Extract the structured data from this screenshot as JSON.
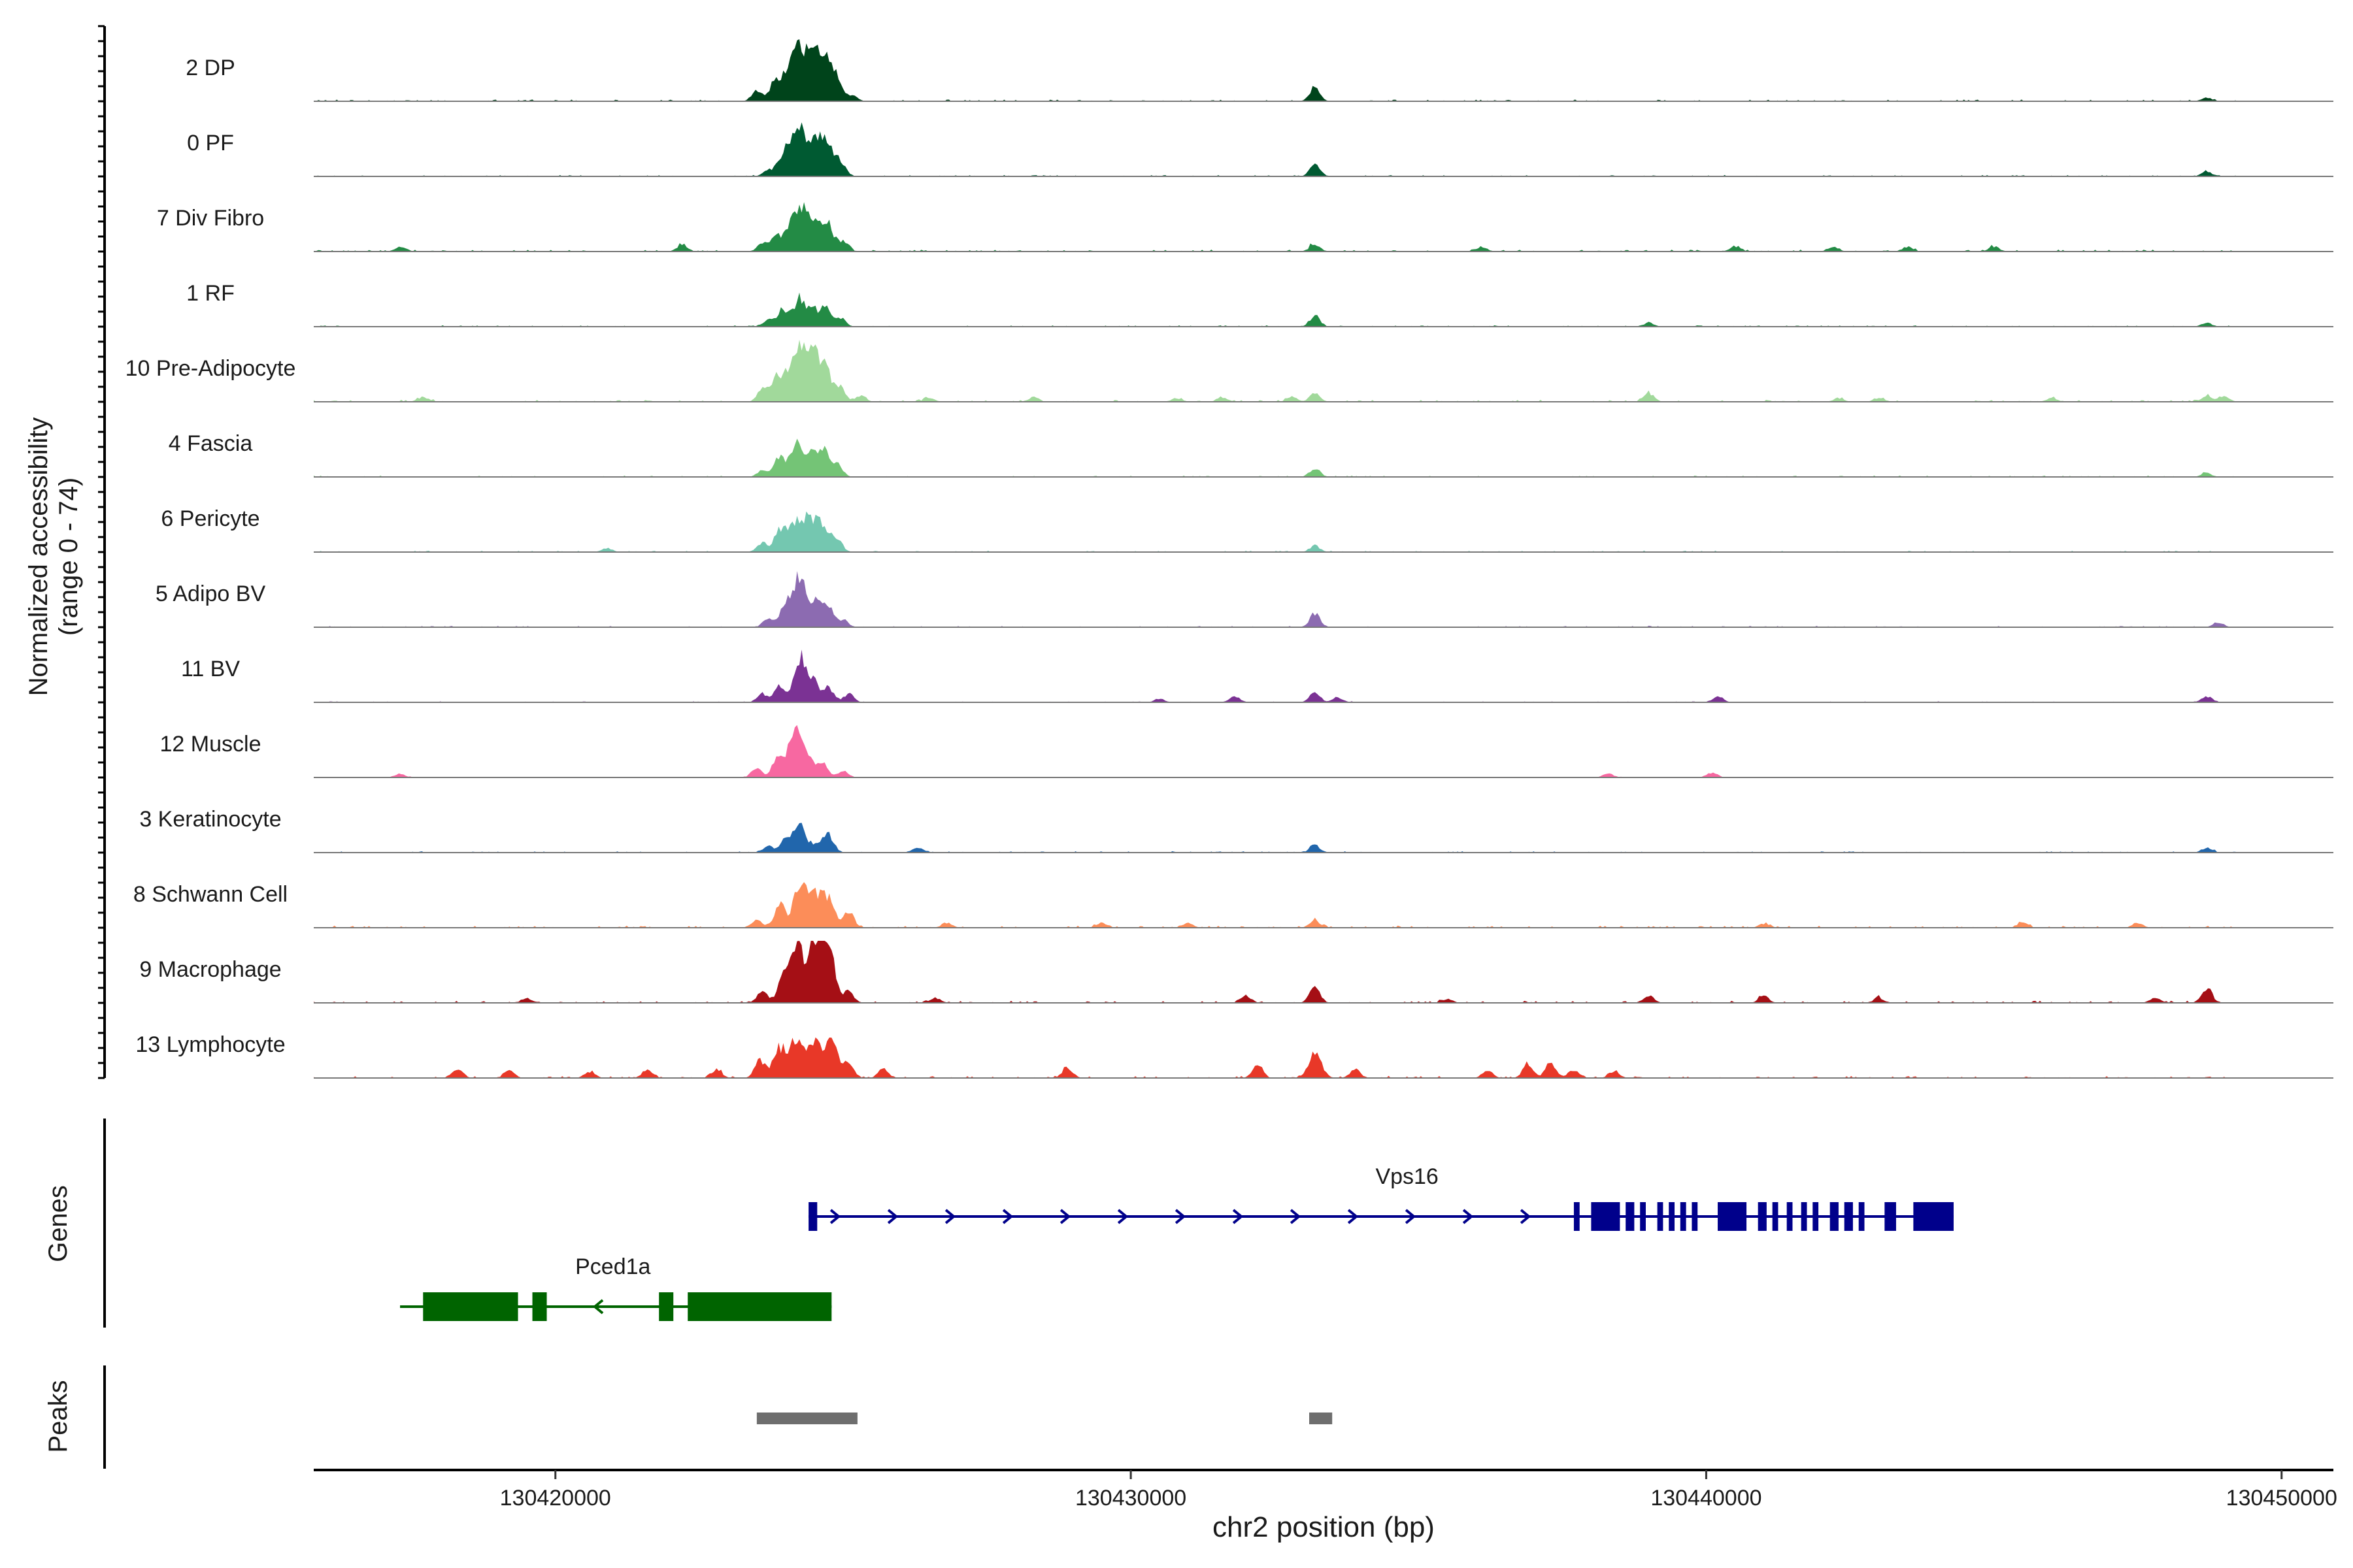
{
  "chart_data": {
    "type": "area",
    "title": "",
    "xlabel": "chr2 position (bp)",
    "ylabel": "Normalized accessibility",
    "ylabel_sub": "(range 0 - 74)",
    "xlim": [
      130415800,
      130450900
    ],
    "x_ticks": [
      {
        "value": 130420000,
        "label": "130420000"
      },
      {
        "value": 130430000,
        "label": "130430000"
      },
      {
        "value": 130440000,
        "label": "130440000"
      },
      {
        "value": 130450000,
        "label": "130450000"
      }
    ],
    "ylim": [
      0,
      74
    ],
    "series": [
      {
        "name": "2 DP",
        "color": "#00441b",
        "peaks": [
          [
            130423500,
            16
          ],
          [
            130423800,
            28
          ],
          [
            130424050,
            46
          ],
          [
            130424250,
            88
          ],
          [
            130424500,
            58
          ],
          [
            130424700,
            66
          ],
          [
            130424900,
            30
          ],
          [
            130425150,
            10
          ],
          [
            130433200,
            22
          ],
          [
            130448700,
            6
          ]
        ],
        "noise": 2.5,
        "range": [
          130415800,
          130449200
        ]
      },
      {
        "name": "0 PF",
        "color": "#005a32",
        "peaks": [
          [
            130423700,
            10
          ],
          [
            130424000,
            44
          ],
          [
            130424250,
            68
          ],
          [
            130424500,
            42
          ],
          [
            130424700,
            56
          ],
          [
            130424950,
            22
          ],
          [
            130433200,
            20
          ],
          [
            130448700,
            8
          ]
        ],
        "noise": 2,
        "range": [
          130415800,
          130449200
        ]
      },
      {
        "name": "7 Div Fibro",
        "color": "#238b45",
        "peaks": [
          [
            130417300,
            8
          ],
          [
            130422200,
            10
          ],
          [
            130423600,
            14
          ],
          [
            130423850,
            26
          ],
          [
            130424100,
            40
          ],
          [
            130424300,
            62
          ],
          [
            130424550,
            44
          ],
          [
            130424750,
            38
          ],
          [
            130425000,
            16
          ],
          [
            130433200,
            12
          ],
          [
            130436100,
            8
          ],
          [
            130440500,
            8
          ],
          [
            130442200,
            8
          ],
          [
            130443500,
            8
          ],
          [
            130445000,
            8
          ]
        ],
        "noise": 3,
        "range": [
          130415800,
          130449200
        ]
      },
      {
        "name": "1 RF",
        "color": "#238b45",
        "peaks": [
          [
            130423700,
            10
          ],
          [
            130423950,
            28
          ],
          [
            130424250,
            46
          ],
          [
            130424500,
            22
          ],
          [
            130424700,
            30
          ],
          [
            130424950,
            14
          ],
          [
            130433200,
            16
          ],
          [
            130439000,
            6
          ],
          [
            130448700,
            6
          ]
        ],
        "noise": 2,
        "range": [
          130415800,
          130449200
        ]
      },
      {
        "name": "10 Pre-Adipocyte",
        "color": "#a1d99b",
        "peaks": [
          [
            130417700,
            8
          ],
          [
            130423600,
            20
          ],
          [
            130423850,
            38
          ],
          [
            130424100,
            52
          ],
          [
            130424300,
            80
          ],
          [
            130424500,
            56
          ],
          [
            130424700,
            46
          ],
          [
            130424950,
            22
          ],
          [
            130425300,
            10
          ],
          [
            130426500,
            6
          ],
          [
            130428300,
            6
          ],
          [
            130430800,
            6
          ],
          [
            130431600,
            6
          ],
          [
            130432800,
            8
          ],
          [
            130433200,
            14
          ],
          [
            130439000,
            14
          ],
          [
            130442300,
            6
          ],
          [
            130443000,
            6
          ],
          [
            130446000,
            6
          ],
          [
            130448700,
            10
          ],
          [
            130449000,
            8
          ]
        ],
        "noise": 3,
        "range": [
          130415800,
          130449200
        ]
      },
      {
        "name": "4 Fascia",
        "color": "#74c476",
        "peaks": [
          [
            130423600,
            10
          ],
          [
            130423900,
            34
          ],
          [
            130424200,
            52
          ],
          [
            130424450,
            28
          ],
          [
            130424650,
            44
          ],
          [
            130424900,
            18
          ],
          [
            130433200,
            14
          ],
          [
            130448700,
            6
          ]
        ],
        "noise": 2,
        "range": [
          130415800,
          130449200
        ]
      },
      {
        "name": "6 Pericyte",
        "color": "#74c7b0",
        "peaks": [
          [
            130420900,
            6
          ],
          [
            130423600,
            14
          ],
          [
            130423900,
            36
          ],
          [
            130424150,
            44
          ],
          [
            130424400,
            54
          ],
          [
            130424650,
            44
          ],
          [
            130424900,
            20
          ],
          [
            130433200,
            10
          ]
        ],
        "noise": 2,
        "range": [
          130415800,
          130449200
        ]
      },
      {
        "name": "5 Adipo BV",
        "color": "#8c6bb1",
        "peaks": [
          [
            130423700,
            14
          ],
          [
            130424000,
            38
          ],
          [
            130424250,
            80
          ],
          [
            130424550,
            40
          ],
          [
            130424750,
            30
          ],
          [
            130425000,
            12
          ],
          [
            130433200,
            22
          ],
          [
            130448900,
            8
          ]
        ],
        "noise": 2,
        "range": [
          130415800,
          130449200
        ]
      },
      {
        "name": "11 BV",
        "color": "#7b3294",
        "peaks": [
          [
            130423600,
            14
          ],
          [
            130423900,
            28
          ],
          [
            130424250,
            72
          ],
          [
            130424500,
            30
          ],
          [
            130424750,
            24
          ],
          [
            130425100,
            14
          ],
          [
            130430500,
            6
          ],
          [
            130431800,
            10
          ],
          [
            130433200,
            16
          ],
          [
            130433600,
            8
          ],
          [
            130440200,
            10
          ],
          [
            130448700,
            10
          ]
        ],
        "noise": 1.5,
        "range": [
          130415800,
          130449200
        ]
      },
      {
        "name": "12 Muscle",
        "color": "#f768a1",
        "peaks": [
          [
            130417300,
            6
          ],
          [
            130423500,
            14
          ],
          [
            130423850,
            28
          ],
          [
            130424150,
            84
          ],
          [
            130424400,
            30
          ],
          [
            130424650,
            24
          ],
          [
            130425000,
            10
          ],
          [
            130438300,
            6
          ],
          [
            130440100,
            8
          ]
        ],
        "noise": 1,
        "range": [
          130415800,
          130449200
        ]
      },
      {
        "name": "3 Keratinocyte",
        "color": "#2166ac",
        "peaks": [
          [
            130423700,
            10
          ],
          [
            130424000,
            20
          ],
          [
            130424250,
            42
          ],
          [
            130424550,
            14
          ],
          [
            130424750,
            28
          ],
          [
            130426300,
            8
          ],
          [
            130433200,
            12
          ],
          [
            130448700,
            8
          ]
        ],
        "noise": 2,
        "range": [
          130415800,
          130449200
        ]
      },
      {
        "name": "8 Schwann Cell",
        "color": "#fc8d59",
        "peaks": [
          [
            130423500,
            14
          ],
          [
            130423900,
            36
          ],
          [
            130424250,
            72
          ],
          [
            130424500,
            50
          ],
          [
            130424750,
            46
          ],
          [
            130425100,
            26
          ],
          [
            130426800,
            8
          ],
          [
            130429500,
            8
          ],
          [
            130431000,
            8
          ],
          [
            130433200,
            12
          ],
          [
            130441000,
            6
          ],
          [
            130445500,
            8
          ],
          [
            130447500,
            8
          ]
        ],
        "noise": 3,
        "range": [
          130415800,
          130449200
        ]
      },
      {
        "name": "9 Macrophage",
        "color": "#a50f15",
        "peaks": [
          [
            130423600,
            20
          ],
          [
            130423950,
            40
          ],
          [
            130424200,
            90
          ],
          [
            130424500,
            88
          ],
          [
            130424750,
            92
          ],
          [
            130425100,
            18
          ],
          [
            130419500,
            8
          ],
          [
            130426600,
            8
          ],
          [
            130432000,
            12
          ],
          [
            130433200,
            26
          ],
          [
            130435500,
            6
          ],
          [
            130439000,
            12
          ],
          [
            130441000,
            10
          ],
          [
            130443000,
            8
          ],
          [
            130447800,
            8
          ],
          [
            130448700,
            24
          ]
        ],
        "noise": 3,
        "range": [
          130415800,
          130449200
        ]
      },
      {
        "name": "13 Lymphocyte",
        "color": "#e83828",
        "peaks": [
          [
            130418300,
            14
          ],
          [
            130419200,
            12
          ],
          [
            130420600,
            10
          ],
          [
            130421600,
            14
          ],
          [
            130422800,
            14
          ],
          [
            130423550,
            30
          ],
          [
            130423900,
            48
          ],
          [
            130424200,
            62
          ],
          [
            130424500,
            54
          ],
          [
            130424800,
            58
          ],
          [
            130425100,
            24
          ],
          [
            130425700,
            14
          ],
          [
            130428900,
            16
          ],
          [
            130432200,
            22
          ],
          [
            130433200,
            42
          ],
          [
            130433900,
            14
          ],
          [
            130436200,
            12
          ],
          [
            130436900,
            22
          ],
          [
            130437300,
            26
          ],
          [
            130437700,
            14
          ],
          [
            130438400,
            10
          ]
        ],
        "noise": 3,
        "range": [
          130415800,
          130449200
        ]
      }
    ],
    "genes": [
      {
        "name": "Vps16",
        "strand": "+",
        "color": "#00008b",
        "start": 130424400,
        "end": 130444300,
        "exons": [
          [
            130424400,
            130424550
          ],
          [
            130437700,
            130437800
          ],
          [
            130438000,
            130438500
          ],
          [
            130438600,
            130438750
          ],
          [
            130438850,
            130438950
          ],
          [
            130439150,
            130439250
          ],
          [
            130439350,
            130439450
          ],
          [
            130439550,
            130439650
          ],
          [
            130439750,
            130439850
          ],
          [
            130440200,
            130440700
          ],
          [
            130440900,
            130441050
          ],
          [
            130441150,
            130441250
          ],
          [
            130441400,
            130441500
          ],
          [
            130441650,
            130441750
          ],
          [
            130441850,
            130441950
          ],
          [
            130442150,
            130442300
          ],
          [
            130442400,
            130442550
          ],
          [
            130442650,
            130442750
          ],
          [
            130443100,
            130443300
          ],
          [
            130443600,
            130444300
          ]
        ]
      },
      {
        "name": "Pced1a",
        "strand": "-",
        "color": "#006400",
        "start": 130417300,
        "end": 130424800,
        "exons": [
          [
            130417700,
            130419350
          ],
          [
            130419600,
            130419850
          ],
          [
            130421800,
            130422050
          ],
          [
            130422300,
            130424800
          ]
        ]
      }
    ],
    "peaks_track": [
      [
        130423500,
        130425250
      ],
      [
        130433100,
        130433500
      ]
    ],
    "panel_labels": {
      "genes": "Genes",
      "peaks": "Peaks"
    }
  }
}
